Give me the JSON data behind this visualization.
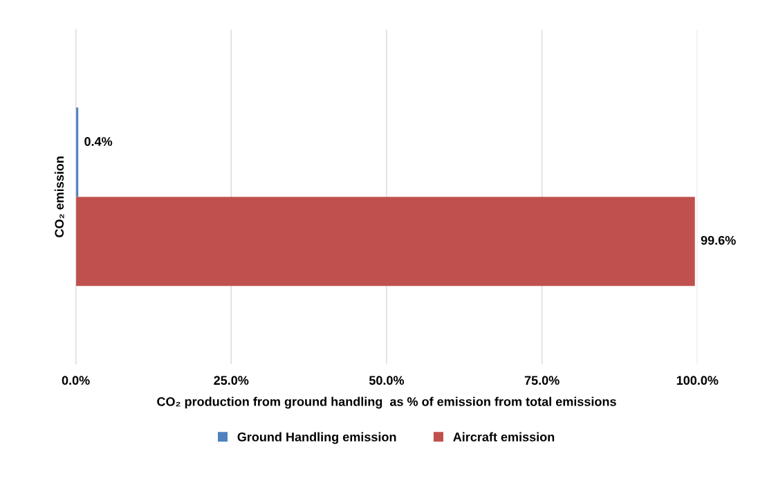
{
  "chart_data": {
    "type": "bar",
    "orientation": "horizontal",
    "xlabel": "CO₂ production from ground handling  as % of emission from total emissions",
    "ylabel": "CO₂ emission",
    "categories": [
      null
    ],
    "series": [
      {
        "name": "Ground Handling emission",
        "color": "#4f81bd",
        "values": [
          0.4
        ],
        "value_labels": [
          "0.4%"
        ]
      },
      {
        "name": "Aircraft emission",
        "color": "#c0504d",
        "values": [
          99.6
        ],
        "value_labels": [
          "99.6%"
        ]
      }
    ],
    "xlim": [
      0,
      100
    ],
    "xticks": [
      {
        "value": 0,
        "label": "0.0%"
      },
      {
        "value": 25,
        "label": "25.0%"
      },
      {
        "value": 50,
        "label": "50.0%"
      },
      {
        "value": 75,
        "label": "75.0%"
      },
      {
        "value": 100,
        "label": "100.0%"
      }
    ],
    "grid": "x",
    "legend": "bottom",
    "tick_labels": "x"
  }
}
